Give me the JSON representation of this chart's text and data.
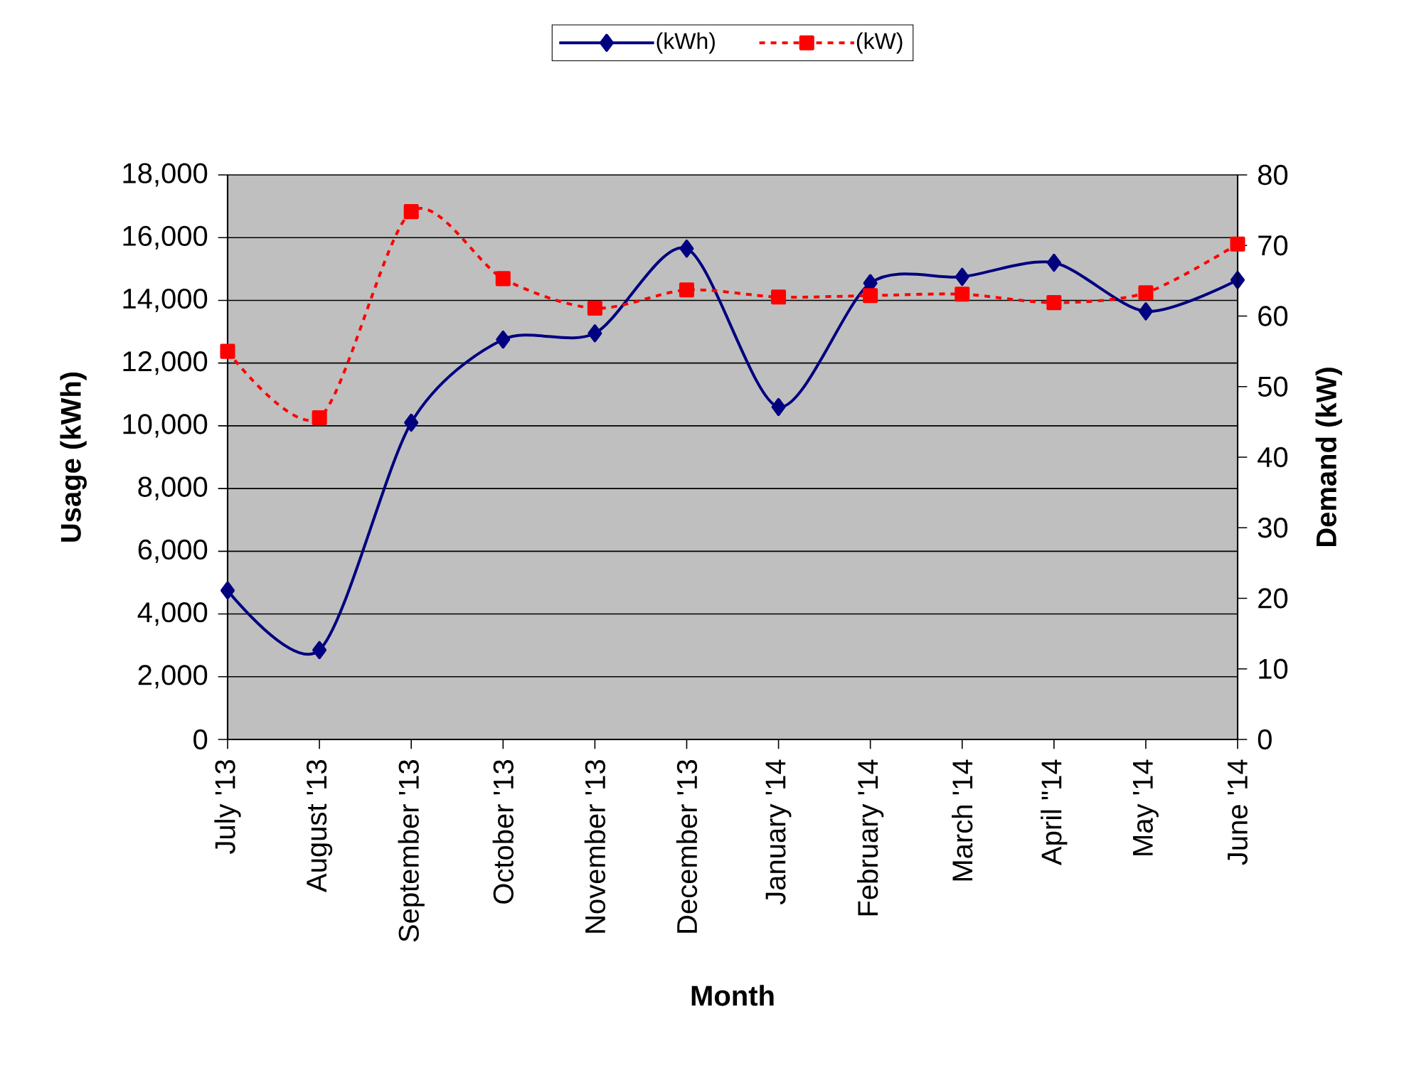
{
  "chart_data": {
    "type": "line",
    "xlabel": "Month",
    "ylabel": "Usage (kWh)",
    "y2label": "Demand (kW)",
    "categories": [
      "July '13",
      "August '13",
      "September '13",
      "October '13",
      "November '13",
      "December '13",
      "January '14",
      "February '14",
      "March '14",
      "April \"14",
      "May '14",
      "June '14"
    ],
    "series": [
      {
        "name": "(kWh)",
        "color": "#000080",
        "marker": "diamond",
        "line_style": "solid",
        "values": [
          4750,
          2850,
          10100,
          12750,
          12950,
          15650,
          10600,
          14550,
          14750,
          15200,
          13650,
          14650
        ]
      },
      {
        "name": "(kW)",
        "color": "#ff0000",
        "marker": "square",
        "line_style": "dashed",
        "axis": "y2",
        "values": [
          55.0,
          45.6,
          74.8,
          65.3,
          61.1,
          63.7,
          62.7,
          62.9,
          63.1,
          61.9,
          63.3,
          70.2
        ]
      }
    ],
    "ylim": [
      0,
      18000
    ],
    "yticks": [
      {
        "value": 0,
        "label": "0"
      },
      {
        "value": 2000,
        "label": "2,000"
      },
      {
        "value": 4000,
        "label": "4,000"
      },
      {
        "value": 6000,
        "label": "6,000"
      },
      {
        "value": 8000,
        "label": "8,000"
      },
      {
        "value": 10000,
        "label": "10,000"
      },
      {
        "value": 12000,
        "label": "12,000"
      },
      {
        "value": 14000,
        "label": "14,000"
      },
      {
        "value": 16000,
        "label": "16,000"
      },
      {
        "value": 18000,
        "label": "18,000"
      }
    ],
    "y2lim": [
      0,
      80
    ],
    "y2ticks": [
      0,
      10,
      20,
      30,
      40,
      50,
      60,
      70,
      80
    ],
    "grid": "y",
    "legend": "top"
  }
}
